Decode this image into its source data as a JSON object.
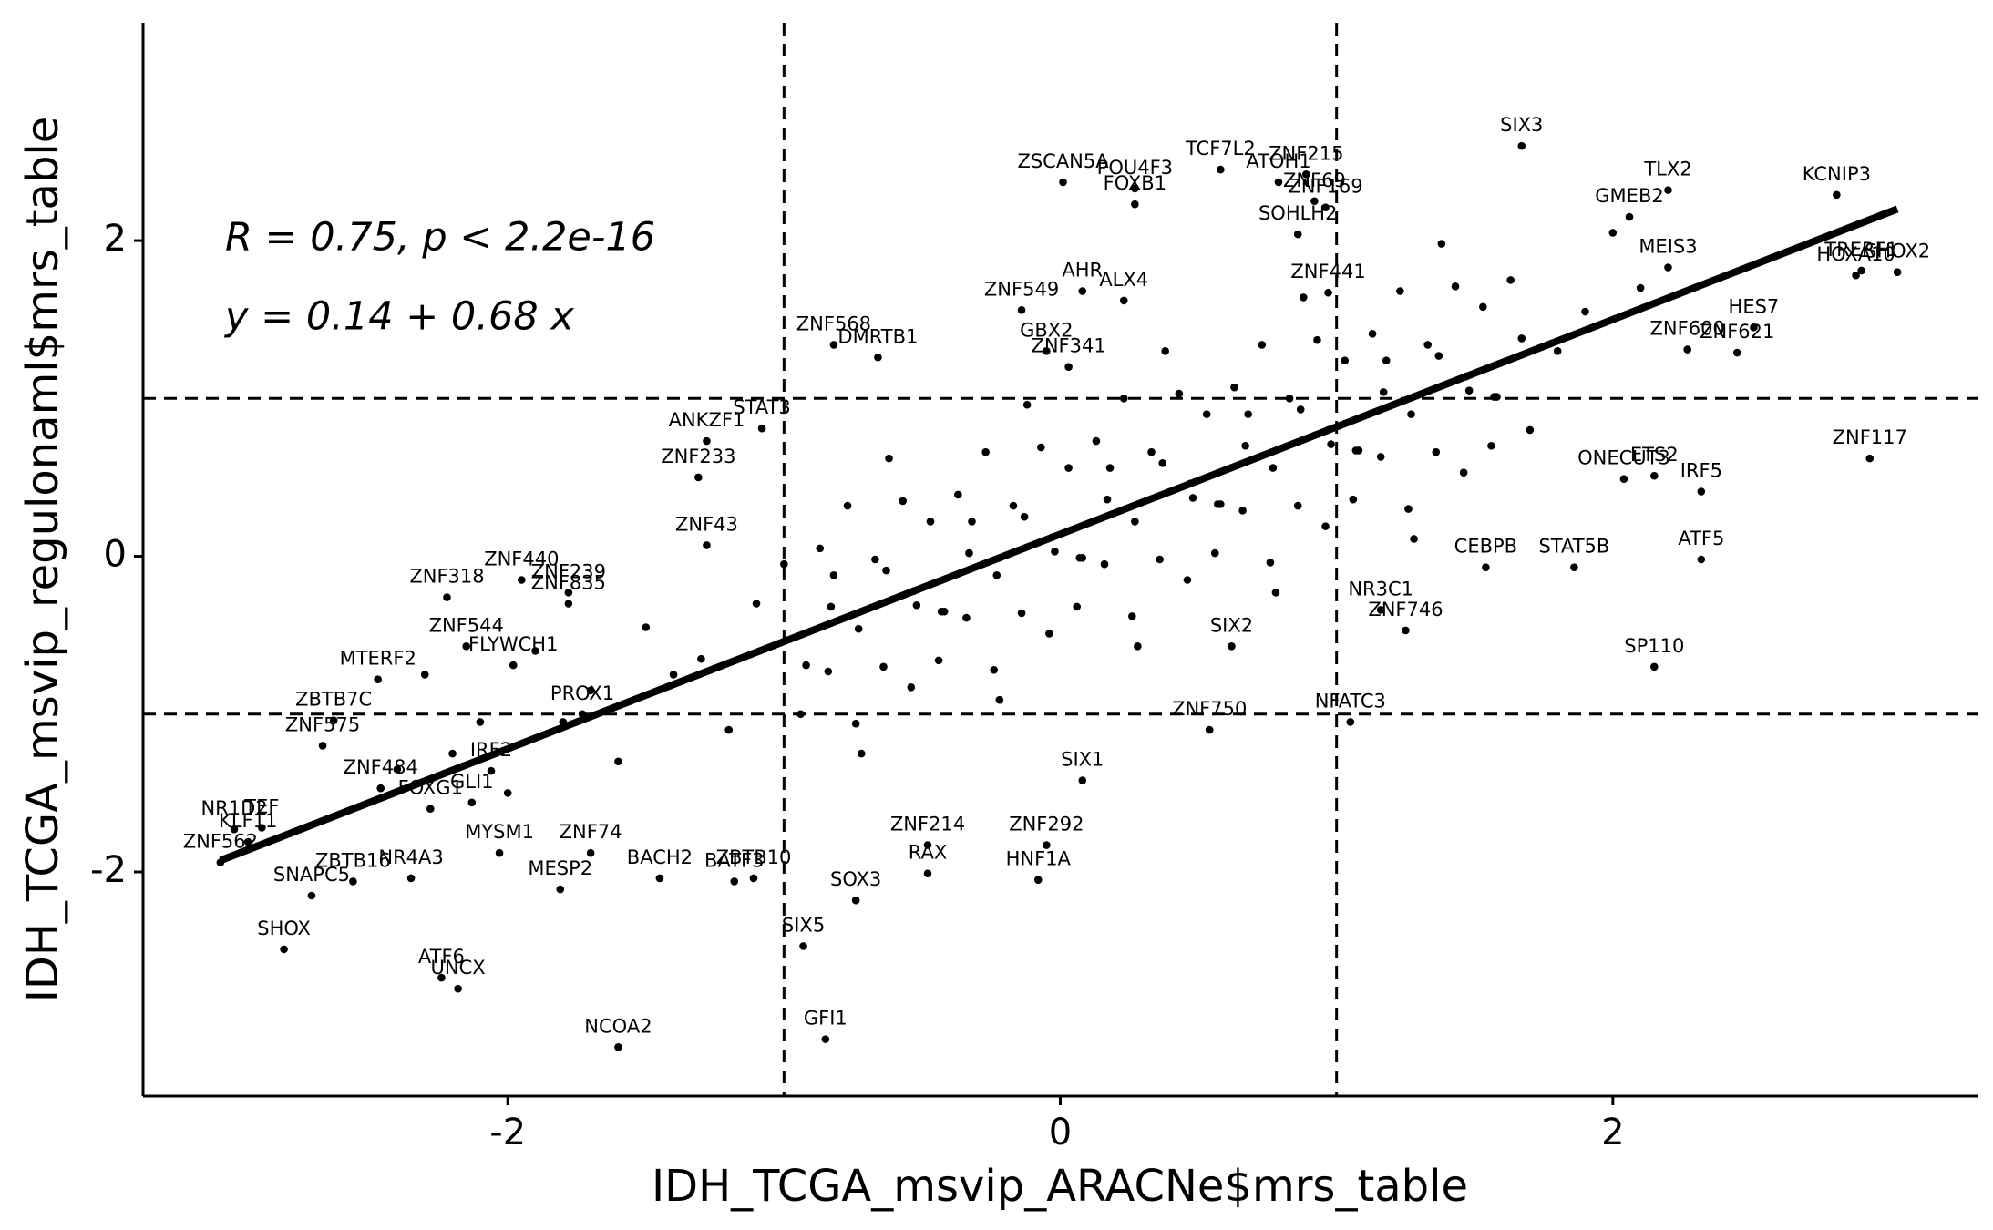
{
  "chart_data": {
    "type": "scatter",
    "x_label": "IDH_TCGA_msvip_ARACNe$mrs_table",
    "y_label": "IDH_TCGA_msvip_regulonaml$mrs_table",
    "annotations": [
      "R = 0.75, p < 2.2e-16",
      "y = 0.14 + 0.68 x"
    ],
    "fit": {
      "intercept": 0.14,
      "slope": 0.68
    },
    "xlim": [
      -3.32,
      3.32
    ],
    "ylim": [
      -3.42,
      3.38
    ],
    "xticks": [
      -2,
      0,
      2
    ],
    "yticks": [
      -2,
      0,
      2
    ],
    "grid": false,
    "reference_lines": {
      "x": [
        -1,
        1
      ],
      "y": [
        -1,
        1
      ]
    },
    "color": "#000000",
    "genes": {
      "labels": [
        "TCF7L2",
        "SIX3",
        "ZSCAN5A",
        "POU4F3",
        "FOXB1",
        "ATOH1",
        "ZNF215",
        "ZNF69",
        "SOHLH2",
        "ZNF169",
        "ZNF441",
        "TLX2",
        "KCNIP3",
        "GMEB2",
        "TRERF1",
        "SHOX2",
        "HOXA10",
        "MEIS3",
        "ZNF600",
        "ZNF621",
        "HES7",
        "ETS2",
        "ZNF117",
        "ONECUT3",
        "IRF5",
        "STAT5B",
        "ATF5",
        "CEBPB",
        "SP110",
        "NR3C1",
        "ZNF746",
        "SIX2",
        "NFATC3",
        "ZNF750",
        "SIX1",
        "ZNF292",
        "HNF1A",
        "ZNF214",
        "RAX",
        "AHR",
        "ZNF549",
        "ALX4",
        "GBX2",
        "ZNF341",
        "ZNF568",
        "STAT3",
        "DMRTB1",
        "ANKZF1",
        "ZNF233",
        "ZNF43",
        "ZNF440",
        "ZNF318",
        "ZNF239",
        "ZNF544",
        "ZNF835",
        "MTERF2",
        "FLYWCH1",
        "PROX1",
        "ZBTB7C",
        "ZNF575",
        "IRF2",
        "ZNF484",
        "GLI1",
        "NR1D2",
        "TEF",
        "FOXG1",
        "ZNF74",
        "ZNF562",
        "KLF11",
        "ZBTB16",
        "MYSM1",
        "NR4A3",
        "MESP2",
        "BACH2",
        "BATF3",
        "ZBTB10",
        "SNAPC5",
        "SHOX",
        "ATF6",
        "UNCX",
        "NCOA2",
        "SOX3",
        "SIX5",
        "GFI1"
      ],
      "x": [
        0.58,
        1.67,
        0.01,
        0.27,
        0.27,
        0.79,
        0.89,
        0.92,
        0.86,
        0.96,
        0.97,
        2.2,
        2.81,
        2.06,
        2.9,
        3.03,
        2.88,
        2.2,
        2.27,
        2.45,
        2.51,
        2.15,
        2.93,
        2.04,
        2.32,
        1.86,
        2.32,
        1.54,
        2.15,
        1.16,
        1.25,
        0.62,
        1.05,
        0.54,
        0.08,
        -0.05,
        -0.08,
        -0.48,
        -0.48,
        0.08,
        -0.14,
        0.23,
        -0.05,
        0.03,
        -0.82,
        -1.08,
        -0.66,
        -1.28,
        -1.31,
        -1.28,
        -1.95,
        -2.22,
        -1.78,
        -2.15,
        -1.78,
        -2.47,
        -1.98,
        -1.73,
        -2.63,
        -2.67,
        -2.06,
        -2.46,
        -2.13,
        -2.99,
        -2.89,
        -2.28,
        -1.7,
        -3.04,
        -2.94,
        -2.56,
        -2.03,
        -2.35,
        -1.81,
        -1.45,
        -1.18,
        -1.11,
        -2.71,
        -2.81,
        -2.24,
        -2.18,
        -1.6,
        -0.74,
        -0.93,
        -0.85
      ],
      "y": [
        2.45,
        2.6,
        2.37,
        2.33,
        2.23,
        2.37,
        2.42,
        2.25,
        2.04,
        2.21,
        1.67,
        2.32,
        2.29,
        2.15,
        1.81,
        1.8,
        1.78,
        1.83,
        1.31,
        1.29,
        1.45,
        0.51,
        0.62,
        0.49,
        0.41,
        -0.07,
        -0.02,
        -0.07,
        -0.7,
        -0.34,
        -0.47,
        -0.57,
        -1.05,
        -1.1,
        -1.42,
        -1.83,
        -2.05,
        -1.83,
        -2.01,
        1.68,
        1.56,
        1.62,
        1.3,
        1.2,
        1.34,
        0.81,
        1.26,
        0.73,
        0.5,
        0.07,
        -0.15,
        -0.26,
        -0.23,
        -0.57,
        -0.3,
        -0.78,
        -0.69,
        -1.0,
        -1.04,
        -1.2,
        -1.36,
        -1.47,
        -1.56,
        -1.73,
        -1.72,
        -1.6,
        -1.88,
        -1.94,
        -1.81,
        -2.06,
        -1.88,
        -2.04,
        -2.11,
        -2.04,
        -2.06,
        -2.04,
        -2.15,
        -2.49,
        -2.67,
        -2.74,
        -3.11,
        -2.18,
        -2.47,
        -3.06
      ]
    },
    "points": {
      "x": [
        -0.87,
        -0.77,
        -0.67,
        -0.57,
        -0.47,
        -0.37,
        -0.27,
        -0.17,
        -0.07,
        0.03,
        0.13,
        0.23,
        0.33,
        0.43,
        0.53,
        0.63,
        0.73,
        0.83,
        0.93,
        1.03,
        1.13,
        1.23,
        1.33,
        1.43,
        1.53,
        1.63,
        -0.94,
        -0.84,
        -0.74,
        -0.64,
        -0.54,
        -0.44,
        -0.34,
        -0.24,
        -0.14,
        -0.04,
        0.06,
        0.16,
        0.26,
        0.36,
        0.46,
        0.56,
        0.66,
        0.76,
        0.86,
        0.96,
        1.06,
        1.16,
        1.26,
        1.36,
        1.46,
        1.56,
        -0.83,
        -0.73,
        -0.63,
        -0.53,
        -0.43,
        -0.33,
        -0.23,
        -0.13,
        -0.03,
        0.07,
        0.17,
        0.27,
        0.37,
        0.47,
        0.57,
        0.67,
        0.77,
        0.87,
        0.97,
        1.07,
        1.17,
        1.27,
        1.37,
        1.47,
        1.57,
        1.67,
        -0.92,
        -0.82,
        -0.72,
        -0.62,
        -0.52,
        -0.42,
        -0.32,
        -0.22,
        -0.12,
        -0.02,
        0.08,
        0.18,
        0.28,
        0.38,
        0.48,
        0.58,
        0.68,
        0.78,
        0.88,
        0.98,
        1.08,
        1.18,
        1.28,
        1.38,
        1.48,
        1.58,
        -2.4,
        -2.3,
        -2.2,
        -2.1,
        -2.0,
        -1.9,
        -1.8,
        -1.7,
        -1.6,
        -1.5,
        -1.4,
        -1.3,
        -1.2,
        -1.1,
        -1.0,
        1.7,
        1.8,
        1.9,
        2.0,
        2.1
      ],
      "y": [
        0.05,
        0.32,
        -0.02,
        0.35,
        0.22,
        0.39,
        0.66,
        0.32,
        0.69,
        0.56,
        0.73,
        1.0,
        0.66,
        1.03,
        0.9,
        1.07,
        1.34,
        1.0,
        1.37,
        1.24,
        1.41,
        1.68,
        1.34,
        1.71,
        1.58,
        1.75,
        -1.0,
        -0.73,
        -1.06,
        -0.7,
        -0.83,
        -0.66,
        -0.39,
        -0.72,
        -0.36,
        -0.49,
        -0.32,
        -0.05,
        -0.38,
        -0.02,
        -0.15,
        0.02,
        0.29,
        -0.04,
        0.32,
        0.19,
        0.36,
        0.63,
        0.3,
        0.66,
        0.53,
        0.7,
        -0.32,
        -0.46,
        -0.09,
        -0.22,
        -0.35,
        0.02,
        -0.12,
        0.25,
        0.12,
        -0.01,
        0.36,
        0.22,
        0.59,
        0.46,
        0.33,
        0.7,
        0.56,
        0.93,
        0.8,
        0.67,
        1.04,
        0.9,
        1.27,
        1.14,
        1.01,
        1.38,
        -0.69,
        -0.12,
        -1.25,
        0.62,
        -0.31,
        -0.35,
        0.22,
        -0.91,
        0.96,
        0.03,
        -0.01,
        0.56,
        -0.57,
        1.3,
        0.37,
        0.33,
        0.9,
        -0.23,
        1.64,
        0.71,
        0.67,
        1.24,
        0.11,
        1.98,
        1.05,
        1.01,
        -1.35,
        -0.75,
        -1.25,
        -1.05,
        -1.5,
        -0.6,
        -1.05,
        -0.85,
        -1.3,
        -0.45,
        -0.75,
        -0.65,
        -1.1,
        -0.3,
        -0.05,
        0.8,
        1.3,
        1.55,
        2.05,
        1.7
      ]
    }
  }
}
